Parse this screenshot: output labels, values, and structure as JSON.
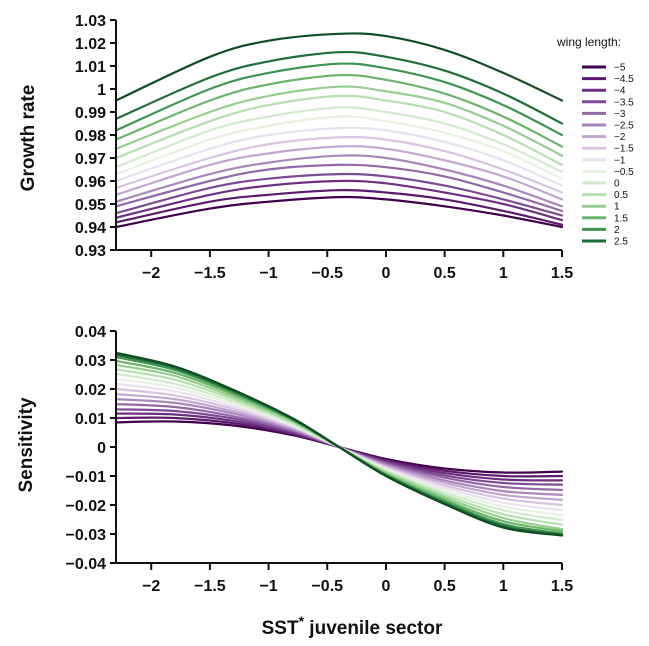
{
  "chart_data": [
    {
      "type": "line",
      "ylabel": "Growth rate",
      "xlim": [
        -2.3,
        1.5
      ],
      "ylim": [
        0.93,
        1.03
      ],
      "xticks": [
        -2,
        -1.5,
        -1,
        -0.5,
        0,
        0.5,
        1,
        1.5
      ],
      "xtick_labels": [
        "−2",
        "−1.5",
        "−1",
        "−0.5",
        "0",
        "0.5",
        "1",
        "1.5"
      ],
      "yticks": [
        0.93,
        0.94,
        0.95,
        0.96,
        0.97,
        0.98,
        0.99,
        1,
        1.01,
        1.02,
        1.03
      ],
      "ytick_labels": [
        "0.93",
        "0.94",
        "0.95",
        "0.96",
        "0.97",
        "0.98",
        "0.99",
        "1",
        "1.01",
        "1.02",
        "1.03"
      ],
      "legend": {
        "title": "wing length:",
        "placement": "right"
      },
      "series_x": [
        -2.3,
        -1.5,
        -1.0,
        -0.4,
        0.0,
        0.5,
        1.0,
        1.5
      ],
      "series": [
        {
          "name": "−5",
          "color": "#40004b",
          "values": [
            0.94,
            0.948,
            0.951,
            0.953,
            0.952,
            0.949,
            0.945,
            0.94
          ]
        },
        {
          "name": "−4.5",
          "color": "#5b1a6b",
          "values": [
            0.942,
            0.951,
            0.954,
            0.956,
            0.955,
            0.952,
            0.947,
            0.941
          ]
        },
        {
          "name": "−4",
          "color": "#6d3080",
          "values": [
            0.944,
            0.954,
            0.958,
            0.96,
            0.959,
            0.955,
            0.95,
            0.943
          ]
        },
        {
          "name": "−3.5",
          "color": "#7f4a93",
          "values": [
            0.946,
            0.957,
            0.961,
            0.963,
            0.962,
            0.958,
            0.952,
            0.945
          ]
        },
        {
          "name": "−3",
          "color": "#9467a9",
          "values": [
            0.949,
            0.96,
            0.965,
            0.967,
            0.966,
            0.962,
            0.955,
            0.947
          ]
        },
        {
          "name": "−2.5",
          "color": "#aa86be",
          "values": [
            0.951,
            0.963,
            0.968,
            0.971,
            0.97,
            0.965,
            0.958,
            0.949
          ]
        },
        {
          "name": "−2",
          "color": "#c3a6d0",
          "values": [
            0.954,
            0.967,
            0.972,
            0.975,
            0.974,
            0.969,
            0.962,
            0.952
          ]
        },
        {
          "name": "−1.5",
          "color": "#d8c3e0",
          "values": [
            0.957,
            0.97,
            0.976,
            0.979,
            0.978,
            0.973,
            0.965,
            0.955
          ]
        },
        {
          "name": "−1",
          "color": "#ebe0ef",
          "values": [
            0.96,
            0.974,
            0.98,
            0.983,
            0.982,
            0.977,
            0.969,
            0.958
          ]
        },
        {
          "name": "−0.5",
          "color": "#e7f2e2",
          "values": [
            0.963,
            0.978,
            0.984,
            0.988,
            0.986,
            0.981,
            0.973,
            0.961
          ]
        },
        {
          "name": "0",
          "color": "#d2ebcc",
          "values": [
            0.966,
            0.982,
            0.988,
            0.992,
            0.99,
            0.985,
            0.976,
            0.964
          ]
        },
        {
          "name": "0.5",
          "color": "#b6dfaf",
          "values": [
            0.97,
            0.986,
            0.993,
            0.997,
            0.995,
            0.99,
            0.98,
            0.967
          ]
        },
        {
          "name": "1",
          "color": "#95cf8e",
          "values": [
            0.974,
            0.99,
            0.997,
            1.001,
            0.999,
            0.994,
            0.984,
            0.971
          ]
        },
        {
          "name": "1.5",
          "color": "#6bb56b",
          "values": [
            0.978,
            0.995,
            1.002,
            1.006,
            1.004,
            0.998,
            0.988,
            0.975
          ]
        },
        {
          "name": "2",
          "color": "#3f9550",
          "values": [
            0.982,
            1.0,
            1.007,
            1.011,
            1.009,
            1.003,
            0.993,
            0.98
          ]
        },
        {
          "name": "2.5",
          "color": "#1f6e37",
          "values": [
            0.987,
            1.005,
            1.012,
            1.016,
            1.014,
            1.008,
            0.998,
            0.985
          ]
        },
        {
          "name": "",
          "color": "#0f4d24",
          "values": [
            0.995,
            1.014,
            1.021,
            1.024,
            1.023,
            1.017,
            1.007,
            0.995
          ]
        }
      ]
    },
    {
      "type": "line",
      "xlabel": "SST",
      "xlabel_sup": "*",
      "xlabel_suffix": " juvenile sector",
      "ylabel": "Sensitivity",
      "xlim": [
        -2.3,
        1.5
      ],
      "ylim": [
        -0.04,
        0.04
      ],
      "xticks": [
        -2,
        -1.5,
        -1,
        -0.5,
        0,
        0.5,
        1,
        1.5
      ],
      "xtick_labels": [
        "−2",
        "−1.5",
        "−1",
        "−0.5",
        "0",
        "0.5",
        "1",
        "1.5"
      ],
      "yticks": [
        -0.04,
        -0.03,
        -0.02,
        -0.01,
        0,
        0.01,
        0.02,
        0.03,
        0.04
      ],
      "ytick_labels": [
        "−0.04",
        "−0.03",
        "−0.02",
        "−0.01",
        "0",
        "0.01",
        "0.02",
        "0.03",
        "0.04"
      ],
      "series_x": [
        -2.3,
        -1.8,
        -1.3,
        -0.8,
        -0.4,
        0.0,
        0.5,
        1.0,
        1.5
      ],
      "series": [
        {
          "name": "−5",
          "color": "#40004b",
          "values": [
            0.0085,
            0.0088,
            0.0074,
            0.0041,
            0.0,
            -0.0041,
            -0.0074,
            -0.0088,
            -0.0085
          ]
        },
        {
          "name": "−4.5",
          "color": "#5b1a6b",
          "values": [
            0.01,
            0.01,
            0.0082,
            0.0045,
            0.0,
            -0.0045,
            -0.0082,
            -0.01,
            -0.01
          ]
        },
        {
          "name": "−4",
          "color": "#6d3080",
          "values": [
            0.0115,
            0.0112,
            0.009,
            0.0049,
            0.0,
            -0.0049,
            -0.009,
            -0.0112,
            -0.0115
          ]
        },
        {
          "name": "−3.5",
          "color": "#7f4a93",
          "values": [
            0.013,
            0.0124,
            0.0098,
            0.0053,
            0.0,
            -0.0053,
            -0.0098,
            -0.0124,
            -0.013
          ]
        },
        {
          "name": "−3",
          "color": "#9467a9",
          "values": [
            0.0148,
            0.0138,
            0.0106,
            0.0057,
            0.0,
            -0.0057,
            -0.0106,
            -0.0138,
            -0.0148
          ]
        },
        {
          "name": "−2.5",
          "color": "#aa86be",
          "values": [
            0.0165,
            0.0152,
            0.0115,
            0.0061,
            0.0,
            -0.0061,
            -0.0115,
            -0.0152,
            -0.0165
          ]
        },
        {
          "name": "−2",
          "color": "#c3a6d0",
          "values": [
            0.0182,
            0.0165,
            0.0123,
            0.0065,
            0.0,
            -0.0065,
            -0.0123,
            -0.0165,
            -0.0182
          ]
        },
        {
          "name": "−1.5",
          "color": "#d8c3e0",
          "values": [
            0.02,
            0.0178,
            0.0132,
            0.0069,
            0.0,
            -0.0069,
            -0.0132,
            -0.0178,
            -0.02
          ]
        },
        {
          "name": "−1",
          "color": "#ebe0ef",
          "values": [
            0.0218,
            0.0192,
            0.014,
            0.0073,
            0.0,
            -0.0073,
            -0.014,
            -0.0192,
            -0.0218
          ]
        },
        {
          "name": "−0.5",
          "color": "#e7f2e2",
          "values": [
            0.0235,
            0.0205,
            0.0149,
            0.0077,
            0.0,
            -0.0077,
            -0.0149,
            -0.0205,
            -0.0235
          ]
        },
        {
          "name": "0",
          "color": "#d2ebcc",
          "values": [
            0.0252,
            0.0218,
            0.0157,
            0.0081,
            0.0,
            -0.0081,
            -0.0157,
            -0.0218,
            -0.0252
          ]
        },
        {
          "name": "0.5",
          "color": "#b6dfaf",
          "values": [
            0.0268,
            0.0232,
            0.0165,
            0.0085,
            0.0,
            -0.0085,
            -0.0165,
            -0.0232,
            -0.0268
          ]
        },
        {
          "name": "1",
          "color": "#95cf8e",
          "values": [
            0.0283,
            0.0245,
            0.0173,
            0.0089,
            0.0,
            -0.0089,
            -0.0173,
            -0.0245,
            -0.0283
          ]
        },
        {
          "name": "1.5",
          "color": "#6bb56b",
          "values": [
            0.0297,
            0.0256,
            0.0181,
            0.0093,
            0.0,
            -0.0093,
            -0.0181,
            -0.0256,
            -0.029
          ]
        },
        {
          "name": "2",
          "color": "#3f9550",
          "values": [
            0.031,
            0.0266,
            0.0188,
            0.0096,
            0.0,
            -0.0096,
            -0.0188,
            -0.0266,
            -0.0298
          ]
        },
        {
          "name": "2.5",
          "color": "#1f6e37",
          "values": [
            0.0318,
            0.0273,
            0.0193,
            0.0098,
            0.0,
            -0.0098,
            -0.0193,
            -0.0273,
            -0.0303
          ]
        },
        {
          "name": "",
          "color": "#0f4d24",
          "values": [
            0.0325,
            0.0278,
            0.0197,
            0.01,
            0.0,
            -0.01,
            -0.0197,
            -0.0278,
            -0.0305
          ]
        }
      ]
    }
  ]
}
